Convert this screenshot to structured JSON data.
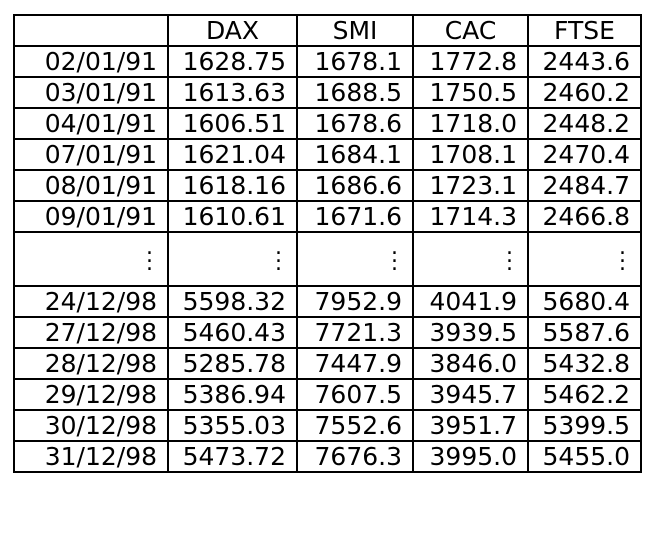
{
  "table": {
    "corner": "",
    "headers": [
      "DAX",
      "SMI",
      "CAC",
      "FTSE"
    ],
    "top_rows": [
      {
        "date": "02/01/91",
        "values": [
          "1628.75",
          "1678.1",
          "1772.8",
          "2443.6"
        ]
      },
      {
        "date": "03/01/91",
        "values": [
          "1613.63",
          "1688.5",
          "1750.5",
          "2460.2"
        ]
      },
      {
        "date": "04/01/91",
        "values": [
          "1606.51",
          "1678.6",
          "1718.0",
          "2448.2"
        ]
      },
      {
        "date": "07/01/91",
        "values": [
          "1621.04",
          "1684.1",
          "1708.1",
          "2470.4"
        ]
      },
      {
        "date": "08/01/91",
        "values": [
          "1618.16",
          "1686.6",
          "1723.1",
          "2484.7"
        ]
      },
      {
        "date": "09/01/91",
        "values": [
          "1610.61",
          "1671.6",
          "1714.3",
          "2466.8"
        ]
      }
    ],
    "bottom_rows": [
      {
        "date": "24/12/98",
        "values": [
          "5598.32",
          "7952.9",
          "4041.9",
          "5680.4"
        ]
      },
      {
        "date": "27/12/98",
        "values": [
          "5460.43",
          "7721.3",
          "3939.5",
          "5587.6"
        ]
      },
      {
        "date": "28/12/98",
        "values": [
          "5285.78",
          "7447.9",
          "3846.0",
          "5432.8"
        ]
      },
      {
        "date": "29/12/98",
        "values": [
          "5386.94",
          "7607.5",
          "3945.7",
          "5462.2"
        ]
      },
      {
        "date": "30/12/98",
        "values": [
          "5355.03",
          "7552.6",
          "3951.7",
          "5399.5"
        ]
      },
      {
        "date": "31/12/98",
        "values": [
          "5473.72",
          "7676.3",
          "3995.0",
          "5455.0"
        ]
      }
    ]
  }
}
